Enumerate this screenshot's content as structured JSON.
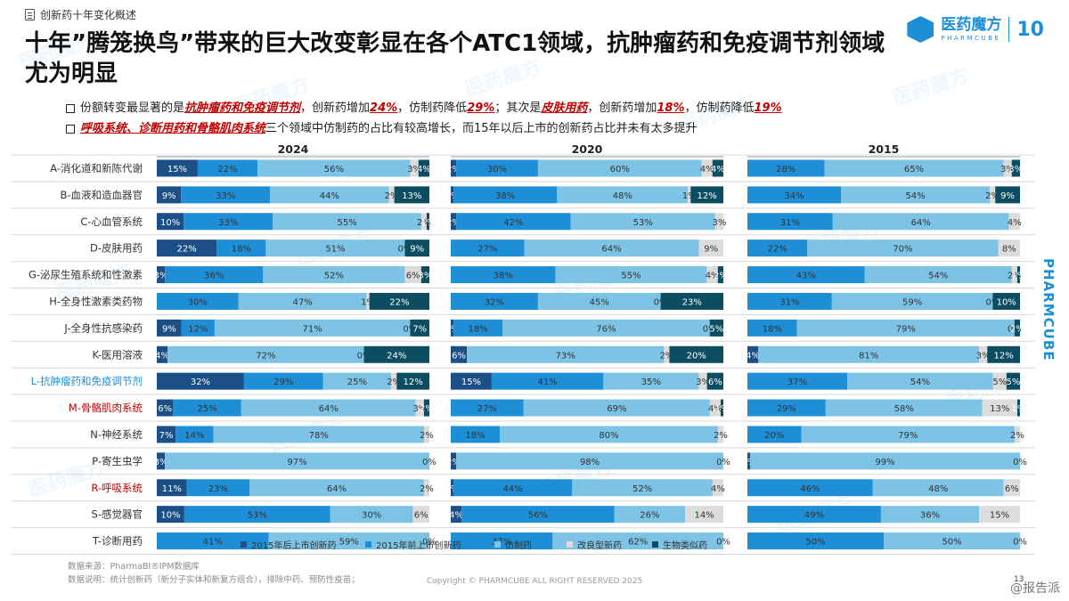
{
  "header": {
    "section": "创新药十年变化概述",
    "title": "十年”腾笼换鸟”带来的巨大改变彰显在各个ATC1领域，抗肿瘤药和免疫调节剂领域尤为明显"
  },
  "brand": {
    "name_cn": "医药魔方",
    "name_en": "PHARMCUBE",
    "anniversary": "10",
    "side_text": "PHARMCUBE"
  },
  "watermark_text": "医药魔方",
  "bullets": {
    "b1": {
      "t1": "份额转变最显著的是",
      "e1": "抗肿瘤药和免疫调节剂",
      "t2": "，创新药增加",
      "e2": "24%",
      "t3": "，仿制药降低",
      "e3": "29%",
      "t4": "；其次是",
      "e4": "皮肤用药",
      "t5": "，创新药增加",
      "e5": "18%",
      "t6": "，仿制药降低",
      "e6": "19%"
    },
    "b2": {
      "e1": "呼吸系统、诊断用药和骨骼肌肉系统",
      "t1": "三个领域中仿制药的占比有较高增长，而15年以后上市的创新药占比并未有太多提升"
    }
  },
  "chart_data": {
    "type": "bar",
    "stacked": true,
    "orientation": "horizontal",
    "panels": [
      "2024",
      "2020",
      "2015"
    ],
    "categories": [
      "A-消化道和新陈代谢",
      "B-血液和造血器官",
      "C-心血管系统",
      "D-皮肤用药",
      "G-泌尿生殖系统和性激素",
      "H-全身性激素类药物",
      "J-全身性抗感染药",
      "K-医用溶液",
      "L-抗肿瘤药和免疫调节剂",
      "M-骨骼肌肉系统",
      "N-神经系统",
      "P-寄生虫学",
      "R-呼吸系统",
      "S-感觉器官",
      "T-诊断用药"
    ],
    "highlight_categories": {
      "L-抗肿瘤药和免疫调节剂": "#1e8fd6",
      "M-骨骼肌肉系统": "#c00000",
      "R-呼吸系统": "#c00000"
    },
    "series": [
      {
        "name": "2015年后上市创新药",
        "color": "#1b4f86"
      },
      {
        "name": "2015年前上市创新药",
        "color": "#1e8fd6"
      },
      {
        "name": "仿制药",
        "color": "#7cc3e6"
      },
      {
        "name": "改良型新药",
        "color": "#dcdcdc"
      },
      {
        "name": "生物类似药",
        "color": "#0d4d62"
      }
    ],
    "values": {
      "2024": [
        [
          15,
          22,
          56,
          3,
          4
        ],
        [
          9,
          33,
          44,
          2,
          13
        ],
        [
          10,
          33,
          55,
          2,
          1
        ],
        [
          22,
          18,
          51,
          0,
          9
        ],
        [
          3,
          36,
          52,
          6,
          3
        ],
        [
          0,
          30,
          47,
          1,
          22
        ],
        [
          9,
          12,
          71,
          0,
          7
        ],
        [
          4,
          0,
          72,
          0,
          24
        ],
        [
          32,
          29,
          25,
          2,
          12
        ],
        [
          6,
          25,
          64,
          3,
          2
        ],
        [
          7,
          14,
          78,
          2,
          0
        ],
        [
          3,
          0,
          97,
          0,
          0
        ],
        [
          11,
          23,
          64,
          2,
          0
        ],
        [
          10,
          53,
          30,
          6,
          0
        ],
        [
          0,
          41,
          59,
          0,
          0
        ]
      ],
      "2020": [
        [
          2,
          30,
          60,
          4,
          4
        ],
        [
          1,
          38,
          48,
          1,
          12
        ],
        [
          2,
          42,
          53,
          3,
          0
        ],
        [
          0,
          27,
          64,
          9,
          0
        ],
        [
          0,
          38,
          55,
          4,
          2
        ],
        [
          0,
          32,
          45,
          0,
          23
        ],
        [
          1,
          18,
          76,
          0,
          5
        ],
        [
          6,
          0,
          73,
          2,
          20
        ],
        [
          15,
          41,
          35,
          3,
          6
        ],
        [
          0,
          27,
          69,
          4,
          1
        ],
        [
          0,
          18,
          80,
          2,
          0
        ],
        [
          2,
          0,
          98,
          0,
          0
        ],
        [
          1,
          44,
          52,
          4,
          0
        ],
        [
          4,
          56,
          26,
          14,
          0
        ],
        [
          0,
          37,
          62,
          0,
          0
        ]
      ],
      "2015": [
        [
          0,
          28,
          65,
          3,
          3
        ],
        [
          0,
          34,
          54,
          2,
          9
        ],
        [
          0,
          31,
          64,
          4,
          0
        ],
        [
          0,
          22,
          70,
          8,
          0
        ],
        [
          0,
          43,
          54,
          2,
          1
        ],
        [
          0,
          31,
          59,
          0,
          10
        ],
        [
          0,
          18,
          79,
          0,
          2
        ],
        [
          4,
          0,
          81,
          3,
          12
        ],
        [
          0,
          37,
          54,
          5,
          5
        ],
        [
          0,
          29,
          58,
          13,
          1
        ],
        [
          0,
          20,
          79,
          2,
          0
        ],
        [
          1,
          0,
          99,
          0,
          0
        ],
        [
          0,
          46,
          48,
          6,
          0
        ],
        [
          0,
          49,
          36,
          15,
          0
        ],
        [
          0,
          50,
          50,
          0,
          0
        ]
      ]
    },
    "xlim": [
      0,
      100
    ],
    "legend_position": "bottom"
  },
  "footer": {
    "source": "数据来源：PharmaBI®IPM数据库",
    "note": "数据说明：统计创新药（新分子实体和新复方组合），排除中药、预防性疫苗；",
    "copyright": "Copyright © PHARMCUBE ALL RIGHT RESERVED 2025",
    "page": "13",
    "watermark": "@报告派"
  }
}
